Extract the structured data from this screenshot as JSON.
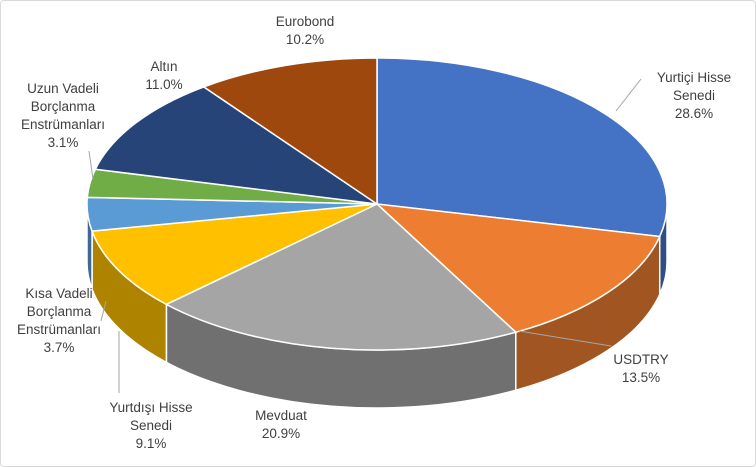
{
  "chart_data": {
    "type": "pie3d",
    "categories": [
      "Yurtiçi Hisse Senedi",
      "USDTRY",
      "Mevduat",
      "Yurtdışı Hisse Senedi",
      "Kısa Vadeli Borçlanma Enstrümanları",
      "Uzun Vadeli Borçlanma Enstrümanları",
      "Altın",
      "Eurobond"
    ],
    "values": [
      28.6,
      13.5,
      20.9,
      9.1,
      3.7,
      3.1,
      11.0,
      10.2
    ],
    "value_labels": [
      "28.6%",
      "13.5%",
      "20.9%",
      "9.1%",
      "3.7%",
      "3.1%",
      "11.0%",
      "10.2%"
    ],
    "colors": [
      "#4472c4",
      "#ed7d31",
      "#a5a5a5",
      "#ffc000",
      "#5b9bd5",
      "#70ad47",
      "#264478",
      "#9e480e"
    ]
  }
}
